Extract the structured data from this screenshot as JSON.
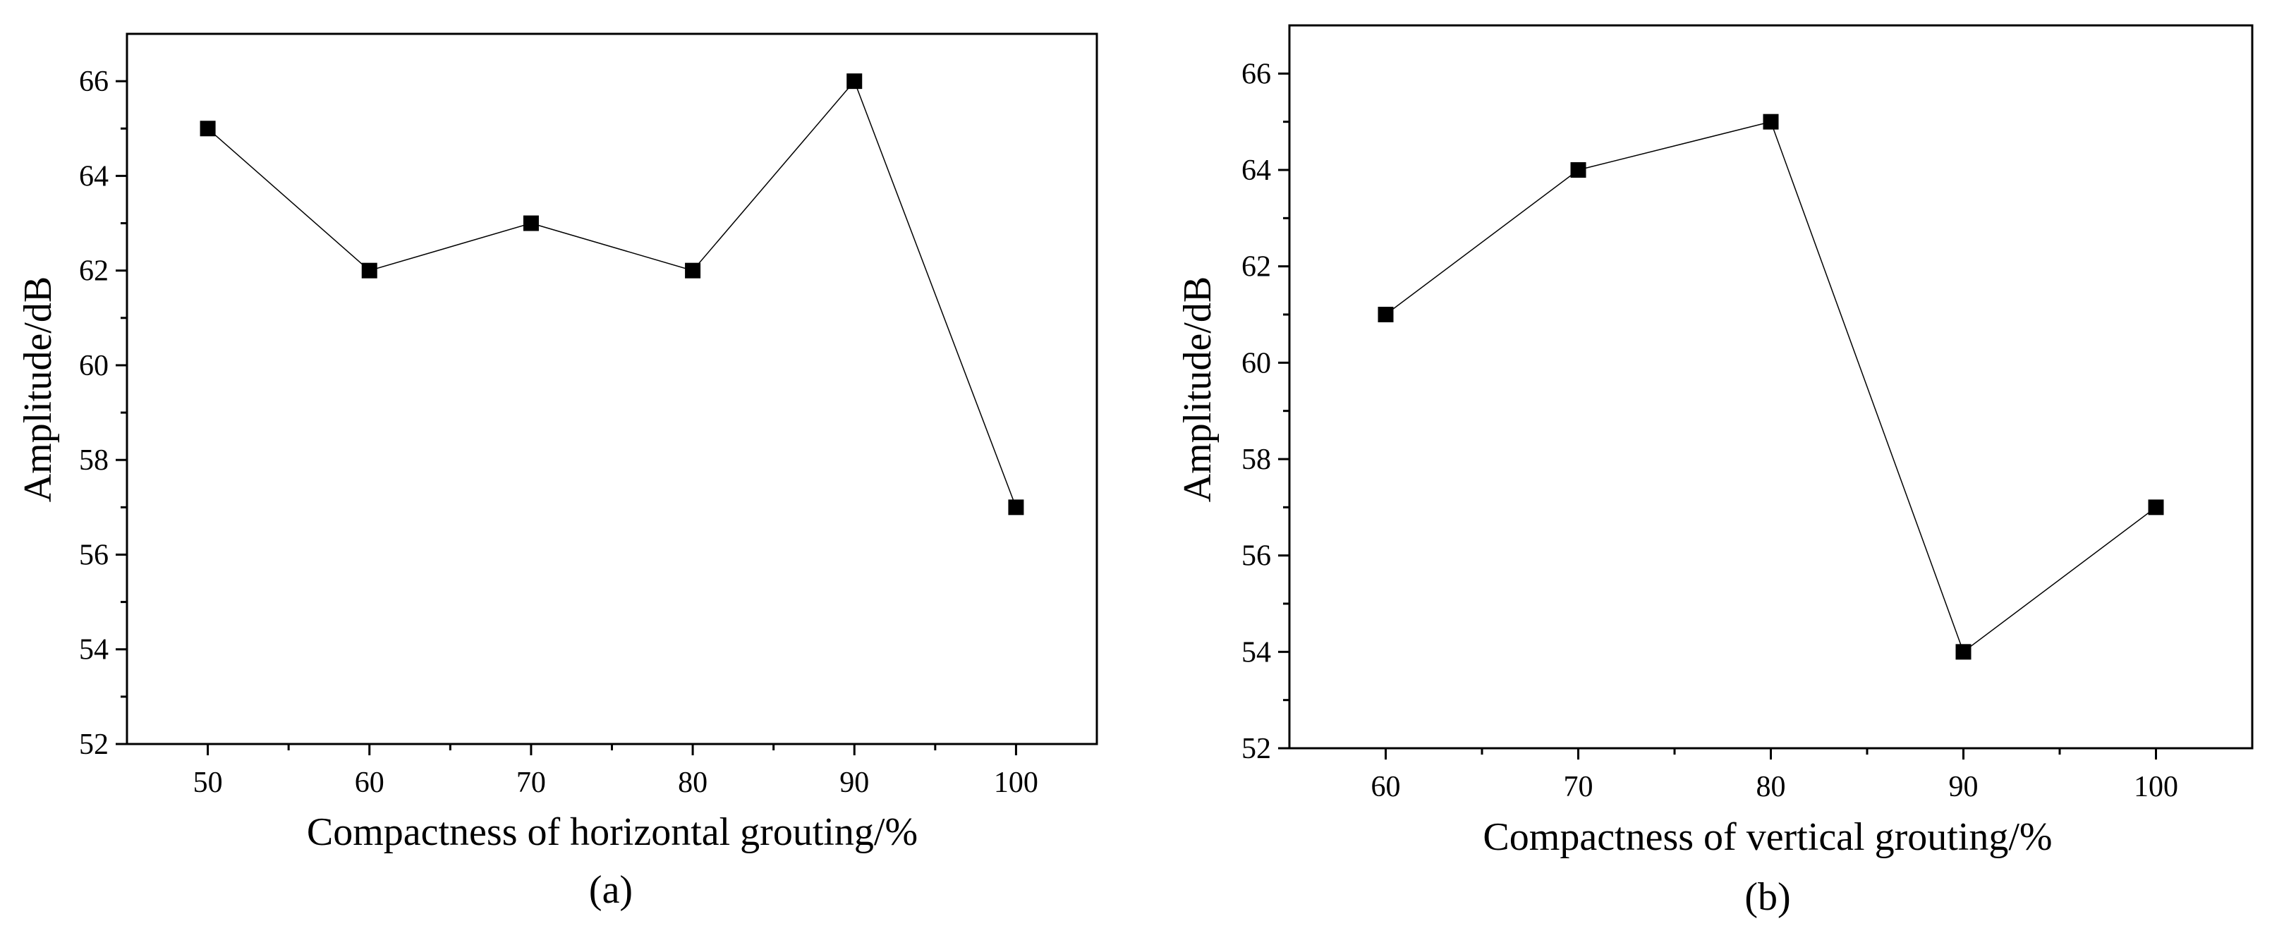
{
  "chart_data": [
    {
      "type": "line",
      "title": "",
      "caption": "(a)",
      "xlabel": "Compactness of horizontal grouting/%",
      "ylabel": "Amplitude/dB",
      "x": [
        50,
        60,
        70,
        80,
        90,
        100
      ],
      "series": [
        {
          "name": "Amplitude",
          "values": [
            65,
            62,
            63,
            62,
            66,
            57
          ]
        }
      ],
      "xlim": [
        45,
        105
      ],
      "ylim": [
        52,
        67
      ],
      "xticks": [
        50,
        60,
        70,
        80,
        90,
        100
      ],
      "yticks": [
        52,
        54,
        56,
        58,
        60,
        62,
        64,
        66
      ],
      "marker": "square",
      "grid": false,
      "colors": {
        "line": "#000000",
        "marker": "#000000"
      }
    },
    {
      "type": "line",
      "title": "",
      "caption": "(b)",
      "xlabel": "Compactness of vertical grouting/%",
      "ylabel": "Amplitude/dB",
      "x": [
        60,
        70,
        80,
        90,
        100
      ],
      "series": [
        {
          "name": "Amplitude",
          "values": [
            61,
            64,
            65,
            54,
            57
          ]
        }
      ],
      "xlim": [
        55,
        105
      ],
      "ylim": [
        52,
        67
      ],
      "xticks": [
        60,
        70,
        80,
        90,
        100
      ],
      "yticks": [
        52,
        54,
        56,
        58,
        60,
        62,
        64,
        66
      ],
      "marker": "square",
      "grid": false,
      "colors": {
        "line": "#000000",
        "marker": "#000000"
      }
    }
  ]
}
